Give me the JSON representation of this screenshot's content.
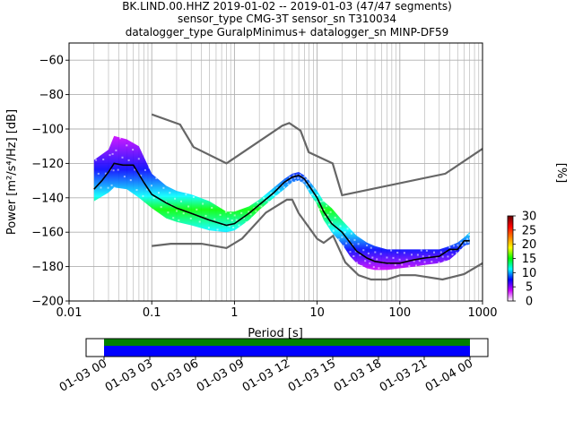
{
  "title": {
    "line1": "BK.LIND.00.HHZ   2019-01-02 -- 2019-01-03  (47/47 segments)",
    "line2": "sensor_type CMG-3T sensor_sn T310034",
    "line3": "datalogger_type GuralpMinimus+ datalogger_sn MINP-DF59"
  },
  "chart_data": {
    "type": "heatmap",
    "xlabel": "Period [s]",
    "ylabel": "Power [m²/s⁴/Hz] [dB]",
    "xscale": "log",
    "xlim": [
      0.01,
      1000
    ],
    "ylim": [
      -200,
      -50
    ],
    "x_ticks": [
      "0.01",
      "0.1",
      "1",
      "10",
      "100",
      "1000"
    ],
    "y_ticks": [
      "−60",
      "−80",
      "−100",
      "−120",
      "−140",
      "−160",
      "−180",
      "−200"
    ],
    "grid": true,
    "colorbar": {
      "label": "[%]",
      "ticks": [
        "0",
        "5",
        "10",
        "15",
        "20",
        "25",
        "30"
      ],
      "range": [
        0,
        30
      ],
      "colors": [
        "#ffffff",
        "#cc00ff",
        "#0000ff",
        "#00ffff",
        "#00ff00",
        "#ffff00",
        "#ff8000",
        "#ff0000",
        "#660000"
      ]
    },
    "noise_models": {
      "high": {
        "x": [
          0.1,
          0.22,
          0.32,
          0.8,
          3.8,
          4.6,
          6.3,
          7.9,
          15.4,
          20,
          354.8,
          1000
        ],
        "y": [
          -91.5,
          -97.4,
          -110.5,
          -120,
          -98,
          -96.5,
          -101,
          -113.5,
          -120,
          -138.5,
          -126,
          -111.5
        ]
      },
      "low": {
        "x": [
          0.1,
          0.17,
          0.4,
          0.8,
          1.24,
          2.4,
          4.3,
          5,
          6,
          10,
          12,
          15.6,
          21.9,
          31.6,
          45,
          70,
          101,
          154,
          328,
          600,
          1000
        ],
        "y": [
          -168,
          -166.7,
          -166.7,
          -169.2,
          -163.7,
          -148.6,
          -141.1,
          -141.1,
          -149,
          -163.8,
          -166.2,
          -162.1,
          -177.5,
          -185,
          -187.5,
          -187.5,
          -185,
          -185,
          -187.5,
          -184.4,
          -178
        ]
      }
    },
    "median": {
      "x": [
        0.02,
        0.025,
        0.03,
        0.035,
        0.045,
        0.06,
        0.08,
        0.1,
        0.15,
        0.2,
        0.3,
        0.5,
        0.8,
        1,
        1.5,
        2,
        3,
        4,
        5,
        6,
        7,
        8,
        10,
        12,
        15,
        20,
        25,
        30,
        40,
        50,
        70,
        100,
        150,
        200,
        300,
        400,
        500,
        600,
        700
      ],
      "y": [
        -135,
        -130,
        -125,
        -120,
        -121,
        -121,
        -131,
        -138,
        -143,
        -146,
        -149,
        -153,
        -156,
        -155,
        -149,
        -144,
        -137,
        -131,
        -128,
        -127,
        -129,
        -133,
        -140,
        -148,
        -155,
        -160,
        -166,
        -171,
        -175,
        -177,
        -178,
        -178,
        -176,
        -175,
        -174,
        -170,
        -170,
        -165,
        -165
      ]
    },
    "density_band": {
      "x": [
        0.02,
        0.03,
        0.035,
        0.05,
        0.07,
        0.1,
        0.15,
        0.2,
        0.3,
        0.5,
        0.8,
        1,
        1.5,
        2,
        3,
        4,
        5,
        6,
        7,
        8,
        10,
        12,
        15,
        20,
        25,
        30,
        40,
        50,
        70,
        100,
        150,
        200,
        300,
        400,
        500,
        600,
        700
      ],
      "upper": [
        -118,
        -112,
        -104,
        -106,
        -110,
        -126,
        -133,
        -136,
        -138,
        -142,
        -148,
        -148,
        -145,
        -141,
        -134,
        -129,
        -126,
        -125,
        -127,
        -130,
        -136,
        -142,
        -146,
        -153,
        -158,
        -162,
        -166,
        -168,
        -170,
        -170,
        -170,
        -170,
        -170,
        -168,
        -166,
        -163,
        -160
      ],
      "lower": [
        -142,
        -137,
        -134,
        -135,
        -140,
        -146,
        -152,
        -154,
        -156,
        -159,
        -160,
        -159,
        -153,
        -147,
        -140,
        -135,
        -131,
        -130,
        -132,
        -137,
        -144,
        -153,
        -160,
        -167,
        -174,
        -178,
        -181,
        -182,
        -182,
        -181,
        -180,
        -179,
        -178,
        -176,
        -172,
        -168,
        -167
      ]
    }
  },
  "timeline": {
    "tick_labels": [
      "01-03 00",
      "01-03 03",
      "01-03 06",
      "01-03 09",
      "01-03 12",
      "01-03 15",
      "01-03 18",
      "01-03 21",
      "01-04 00"
    ],
    "coverage_color": "#0000ff",
    "segment_color": "#008000"
  },
  "colors": {
    "noise_model": "#666666",
    "median": "#000000",
    "grid": "#b0b0b0"
  }
}
